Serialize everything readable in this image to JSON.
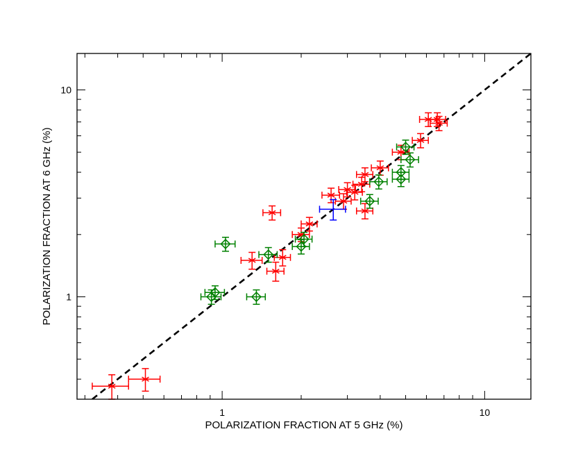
{
  "chart_data": {
    "type": "scatter",
    "xscale": "log",
    "yscale": "log",
    "xlabel": "POLARIZATION  FRACTION  AT  5 GHz  (%)",
    "ylabel": "POLARIZATION  FRACTION  AT  6 GHz  (%)",
    "xlim": [
      0.28,
      15
    ],
    "ylim": [
      0.32,
      15
    ],
    "x_tick_labels": [
      {
        "value": 1,
        "label": "1"
      },
      {
        "value": 10,
        "label": "10"
      }
    ],
    "y_tick_labels": [
      {
        "value": 1,
        "label": "1"
      },
      {
        "value": 10,
        "label": "10"
      }
    ],
    "reference_line": {
      "style": "dashed",
      "slope": 1,
      "color": "#000000",
      "description": "y = x"
    },
    "series": [
      {
        "name": "red",
        "color": "#ff0000",
        "marker": "star",
        "points": [
          {
            "x": 0.38,
            "y": 0.37,
            "xerr": 0.06,
            "yerr": 0.05
          },
          {
            "x": 0.51,
            "y": 0.4,
            "xerr": 0.07,
            "yerr": 0.05
          },
          {
            "x": 1.3,
            "y": 1.5,
            "xerr": 0.12,
            "yerr": 0.14
          },
          {
            "x": 1.6,
            "y": 1.33,
            "xerr": 0.12,
            "yerr": 0.14
          },
          {
            "x": 1.7,
            "y": 1.55,
            "xerr": 0.12,
            "yerr": 0.14
          },
          {
            "x": 1.55,
            "y": 2.55,
            "xerr": 0.12,
            "yerr": 0.2
          },
          {
            "x": 2.0,
            "y": 2.0,
            "xerr": 0.15,
            "yerr": 0.15
          },
          {
            "x": 2.15,
            "y": 2.25,
            "xerr": 0.15,
            "yerr": 0.17
          },
          {
            "x": 2.6,
            "y": 3.1,
            "xerr": 0.2,
            "yerr": 0.25
          },
          {
            "x": 2.9,
            "y": 2.9,
            "xerr": 0.2,
            "yerr": 0.25
          },
          {
            "x": 3.0,
            "y": 3.3,
            "xerr": 0.22,
            "yerr": 0.26
          },
          {
            "x": 3.2,
            "y": 3.2,
            "xerr": 0.22,
            "yerr": 0.26
          },
          {
            "x": 3.4,
            "y": 3.5,
            "xerr": 0.25,
            "yerr": 0.28
          },
          {
            "x": 3.5,
            "y": 3.9,
            "xerr": 0.25,
            "yerr": 0.3
          },
          {
            "x": 3.5,
            "y": 2.6,
            "xerr": 0.25,
            "yerr": 0.22
          },
          {
            "x": 4.0,
            "y": 4.2,
            "xerr": 0.3,
            "yerr": 0.33
          },
          {
            "x": 4.8,
            "y": 5.0,
            "xerr": 0.35,
            "yerr": 0.4
          },
          {
            "x": 5.7,
            "y": 5.7,
            "xerr": 0.4,
            "yerr": 0.45
          },
          {
            "x": 6.1,
            "y": 7.2,
            "xerr": 0.45,
            "yerr": 0.55
          },
          {
            "x": 6.6,
            "y": 7.2,
            "xerr": 0.5,
            "yerr": 0.55
          },
          {
            "x": 6.7,
            "y": 6.9,
            "xerr": 0.5,
            "yerr": 0.55
          }
        ]
      },
      {
        "name": "green",
        "color": "#008000",
        "marker": "diamond",
        "points": [
          {
            "x": 0.91,
            "y": 1.0,
            "xerr": 0.08,
            "yerr": 0.08
          },
          {
            "x": 0.94,
            "y": 1.05,
            "xerr": 0.08,
            "yerr": 0.08
          },
          {
            "x": 1.03,
            "y": 1.8,
            "xerr": 0.09,
            "yerr": 0.14
          },
          {
            "x": 1.35,
            "y": 1.0,
            "xerr": 0.11,
            "yerr": 0.08
          },
          {
            "x": 1.5,
            "y": 1.6,
            "xerr": 0.12,
            "yerr": 0.13
          },
          {
            "x": 2.0,
            "y": 1.75,
            "xerr": 0.15,
            "yerr": 0.14
          },
          {
            "x": 2.05,
            "y": 1.9,
            "xerr": 0.15,
            "yerr": 0.15
          },
          {
            "x": 3.65,
            "y": 2.9,
            "xerr": 0.28,
            "yerr": 0.22
          },
          {
            "x": 3.95,
            "y": 3.6,
            "xerr": 0.3,
            "yerr": 0.28
          },
          {
            "x": 4.8,
            "y": 3.7,
            "xerr": 0.35,
            "yerr": 0.29
          },
          {
            "x": 4.8,
            "y": 4.0,
            "xerr": 0.35,
            "yerr": 0.31
          },
          {
            "x": 5.0,
            "y": 5.3,
            "xerr": 0.38,
            "yerr": 0.42
          },
          {
            "x": 5.2,
            "y": 4.6,
            "xerr": 0.4,
            "yerr": 0.36
          }
        ]
      },
      {
        "name": "blue",
        "color": "#0000ff",
        "marker": "cross",
        "points": [
          {
            "x": 2.65,
            "y": 2.65,
            "xerr": 0.3,
            "yerr": 0.3
          }
        ]
      }
    ]
  }
}
